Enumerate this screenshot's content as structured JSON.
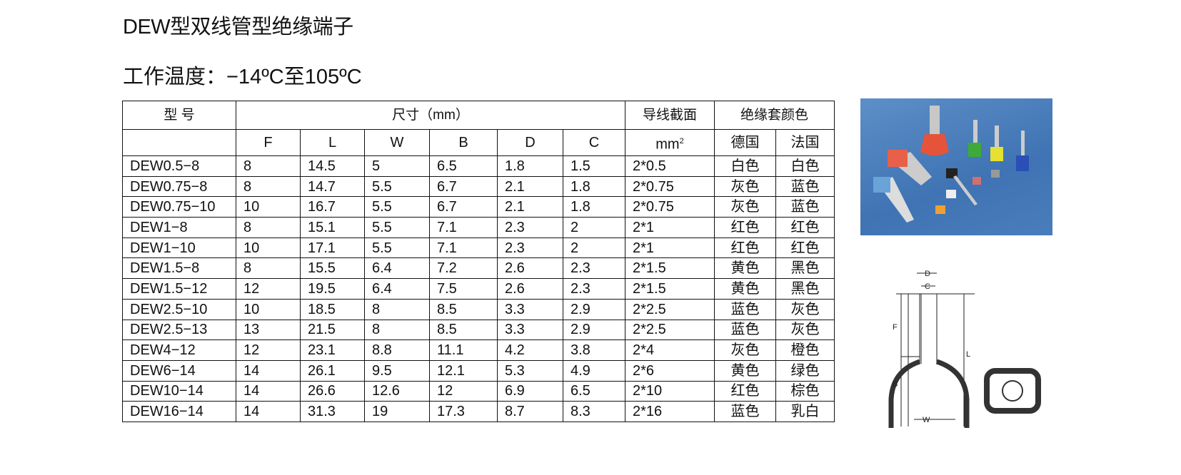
{
  "title": "DEW型双线管型绝缘端子",
  "temperature": "工作温度：−14ºC至105ºC",
  "table": {
    "header1": [
      "型 号",
      "尺寸（mm）",
      "导线截面",
      "绝缘套颜色"
    ],
    "header2": [
      "",
      "F",
      "L",
      "W",
      "B",
      "D",
      "C",
      "mm",
      "德国",
      "法国"
    ],
    "header2_sup": "2",
    "rows": [
      [
        "DEW0.5−8",
        "8",
        "14.5",
        "5",
        "6.5",
        "1.8",
        "1.5",
        "2*0.5",
        "白色",
        "白色"
      ],
      [
        "DEW0.75−8",
        "8",
        "14.7",
        "5.5",
        "6.7",
        "2.1",
        "1.8",
        "2*0.75",
        "灰色",
        "蓝色"
      ],
      [
        "DEW0.75−10",
        "10",
        "16.7",
        "5.5",
        "6.7",
        "2.1",
        "1.8",
        "2*0.75",
        "灰色",
        "蓝色"
      ],
      [
        "DEW1−8",
        "8",
        "15.1",
        "5.5",
        "7.1",
        "2.3",
        "2",
        "2*1",
        "红色",
        "红色"
      ],
      [
        "DEW1−10",
        "10",
        "17.1",
        "5.5",
        "7.1",
        "2.3",
        "2",
        "2*1",
        "红色",
        "红色"
      ],
      [
        "DEW1.5−8",
        "8",
        "15.5",
        "6.4",
        "7.2",
        "2.6",
        "2.3",
        "2*1.5",
        "黄色",
        "黑色"
      ],
      [
        "DEW1.5−12",
        "12",
        "19.5",
        "6.4",
        "7.5",
        "2.6",
        "2.3",
        "2*1.5",
        "黄色",
        "黑色"
      ],
      [
        "DEW2.5−10",
        "10",
        "18.5",
        "8",
        "8.5",
        "3.3",
        "2.9",
        "2*2.5",
        "蓝色",
        "灰色"
      ],
      [
        "DEW2.5−13",
        "13",
        "21.5",
        "8",
        "8.5",
        "3.3",
        "2.9",
        "2*2.5",
        "蓝色",
        "灰色"
      ],
      [
        "DEW4−12",
        "12",
        "23.1",
        "8.8",
        "11.1",
        "4.2",
        "3.8",
        "2*4",
        "灰色",
        "橙色"
      ],
      [
        "DEW6−14",
        "14",
        "26.1",
        "9.5",
        "12.1",
        "5.3",
        "4.9",
        "2*6",
        "黄色",
        "绿色"
      ],
      [
        "DEW10−14",
        "14",
        "26.6",
        "12.6",
        "12",
        "6.9",
        "6.5",
        "2*10",
        "红色",
        "棕色"
      ],
      [
        "DEW16−14",
        "14",
        "31.3",
        "19",
        "17.3",
        "8.7",
        "8.3",
        "2*16",
        "蓝色",
        "乳白"
      ]
    ]
  },
  "diagram": {
    "labels": {
      "D": "D",
      "C": "C",
      "F": "F",
      "L": "L",
      "B": "B",
      "W": "W"
    }
  }
}
